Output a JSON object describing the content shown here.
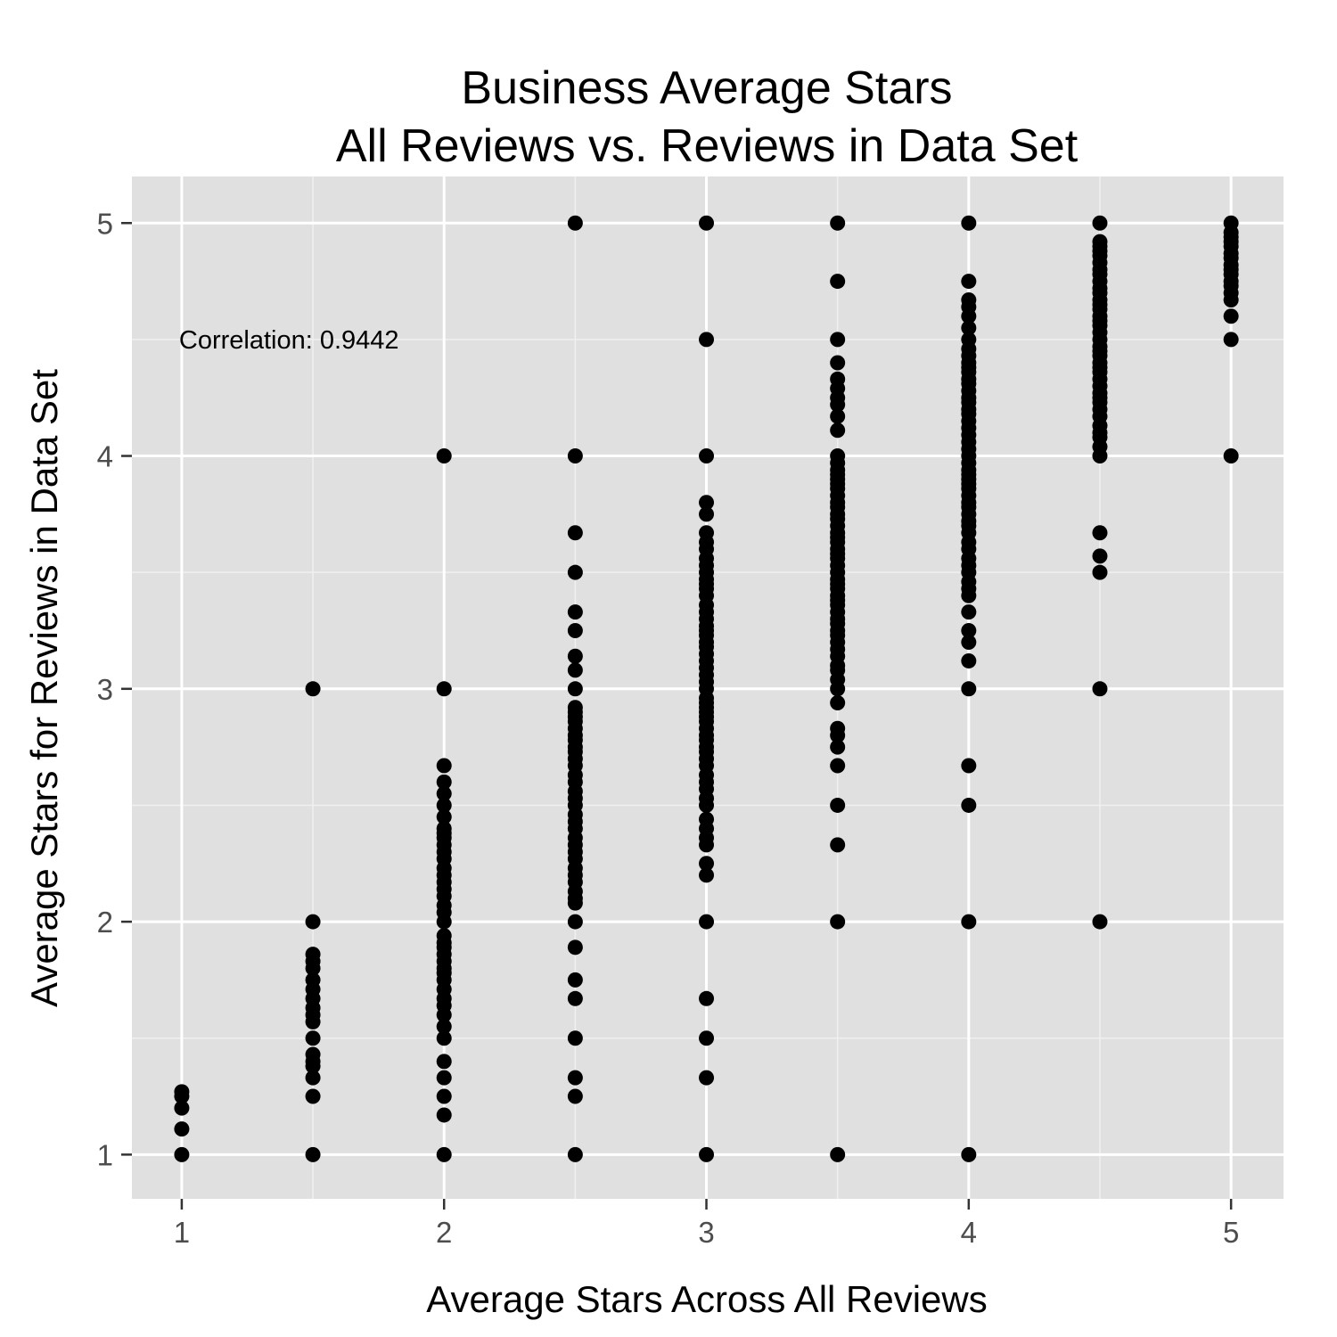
{
  "chart_data": {
    "type": "scatter",
    "title_lines": [
      "Business Average Stars",
      "All Reviews vs. Reviews in Data Set"
    ],
    "xlabel": "Average Stars Across All Reviews",
    "ylabel": "Average Stars for Reviews in Data Set",
    "xlim": [
      0.81,
      5.2
    ],
    "ylim": [
      0.81,
      5.2
    ],
    "x_ticks": [
      1,
      2,
      3,
      4,
      5
    ],
    "y_ticks": [
      1,
      2,
      3,
      4,
      5
    ],
    "grid": true,
    "annotation": "Correlation: 0.9442",
    "annotation_at": {
      "x": 1.0,
      "y": 4.5
    },
    "colors": {
      "panel": "#e0e0e0",
      "grid_major": "#ffffff",
      "grid_minor": "#f0f0f0",
      "point": "#000000",
      "tick_text": "#4d4d4d",
      "tick_mark": "#333333"
    },
    "points": [
      {
        "x": 1.0,
        "y": [
          1.0,
          1.11,
          1.2,
          1.25,
          1.27
        ]
      },
      {
        "x": 1.5,
        "y": [
          1.0,
          1.25,
          1.33,
          1.38,
          1.4,
          1.43,
          1.5,
          1.57,
          1.6,
          1.63,
          1.67,
          1.71,
          1.75,
          1.8,
          1.83,
          1.86,
          2.0,
          3.0
        ]
      },
      {
        "x": 2.0,
        "y": [
          1.0,
          1.17,
          1.25,
          1.33,
          1.4,
          1.5,
          1.55,
          1.6,
          1.64,
          1.67,
          1.71,
          1.75,
          1.78,
          1.8,
          1.83,
          1.86,
          1.89,
          1.91,
          1.94,
          2.0,
          2.04,
          2.07,
          2.11,
          2.14,
          2.17,
          2.2,
          2.23,
          2.27,
          2.3,
          2.33,
          2.36,
          2.38,
          2.4,
          2.45,
          2.5,
          2.55,
          2.6,
          2.67,
          3.0,
          4.0
        ]
      },
      {
        "x": 2.5,
        "y": [
          1.0,
          1.25,
          1.33,
          1.5,
          1.67,
          1.75,
          1.89,
          2.0,
          2.08,
          2.1,
          2.13,
          2.17,
          2.2,
          2.23,
          2.27,
          2.3,
          2.33,
          2.36,
          2.4,
          2.43,
          2.46,
          2.5,
          2.53,
          2.56,
          2.6,
          2.63,
          2.67,
          2.7,
          2.73,
          2.75,
          2.78,
          2.8,
          2.83,
          2.86,
          2.88,
          2.9,
          2.92,
          3.0,
          3.08,
          3.14,
          3.25,
          3.33,
          3.5,
          3.67,
          4.0,
          5.0
        ]
      },
      {
        "x": 3.0,
        "y": [
          1.0,
          1.33,
          1.5,
          1.67,
          2.0,
          2.2,
          2.25,
          2.33,
          2.36,
          2.4,
          2.44,
          2.5,
          2.53,
          2.57,
          2.6,
          2.63,
          2.67,
          2.7,
          2.73,
          2.75,
          2.78,
          2.8,
          2.83,
          2.86,
          2.88,
          2.9,
          2.92,
          2.94,
          2.96,
          3.0,
          3.03,
          3.06,
          3.09,
          3.12,
          3.15,
          3.18,
          3.2,
          3.23,
          3.25,
          3.27,
          3.3,
          3.33,
          3.36,
          3.4,
          3.43,
          3.45,
          3.47,
          3.5,
          3.53,
          3.56,
          3.6,
          3.63,
          3.67,
          3.75,
          3.8,
          4.0,
          4.5,
          5.0
        ]
      },
      {
        "x": 3.5,
        "y": [
          1.0,
          2.0,
          2.33,
          2.5,
          2.67,
          2.75,
          2.8,
          2.83,
          2.94,
          3.0,
          3.04,
          3.08,
          3.1,
          3.14,
          3.17,
          3.2,
          3.23,
          3.25,
          3.28,
          3.3,
          3.33,
          3.36,
          3.38,
          3.4,
          3.43,
          3.45,
          3.47,
          3.5,
          3.53,
          3.56,
          3.58,
          3.6,
          3.63,
          3.65,
          3.67,
          3.7,
          3.73,
          3.75,
          3.78,
          3.8,
          3.83,
          3.86,
          3.88,
          3.9,
          3.92,
          3.94,
          3.97,
          4.0,
          4.11,
          4.17,
          4.22,
          4.25,
          4.29,
          4.33,
          4.4,
          4.5,
          4.75,
          5.0
        ]
      },
      {
        "x": 4.0,
        "y": [
          1.0,
          2.0,
          2.5,
          2.67,
          3.0,
          3.12,
          3.2,
          3.25,
          3.33,
          3.4,
          3.43,
          3.46,
          3.5,
          3.53,
          3.56,
          3.6,
          3.63,
          3.67,
          3.7,
          3.72,
          3.75,
          3.78,
          3.8,
          3.83,
          3.86,
          3.88,
          3.9,
          3.92,
          3.94,
          3.97,
          4.0,
          4.03,
          4.06,
          4.09,
          4.12,
          4.15,
          4.18,
          4.2,
          4.23,
          4.25,
          4.28,
          4.31,
          4.33,
          4.36,
          4.38,
          4.4,
          4.43,
          4.46,
          4.5,
          4.55,
          4.6,
          4.64,
          4.67,
          4.75,
          5.0
        ]
      },
      {
        "x": 4.5,
        "y": [
          2.0,
          3.0,
          3.5,
          3.57,
          3.67,
          4.0,
          4.04,
          4.08,
          4.1,
          4.13,
          4.17,
          4.2,
          4.23,
          4.25,
          4.27,
          4.3,
          4.33,
          4.36,
          4.38,
          4.4,
          4.43,
          4.45,
          4.47,
          4.5,
          4.53,
          4.56,
          4.58,
          4.6,
          4.63,
          4.65,
          4.67,
          4.7,
          4.72,
          4.75,
          4.78,
          4.8,
          4.83,
          4.86,
          4.88,
          4.9,
          4.92,
          5.0
        ]
      },
      {
        "x": 5.0,
        "y": [
          4.0,
          4.5,
          4.6,
          4.67,
          4.7,
          4.73,
          4.75,
          4.78,
          4.8,
          4.82,
          4.85,
          4.87,
          4.9,
          4.92,
          4.94,
          4.96,
          5.0
        ]
      }
    ]
  }
}
